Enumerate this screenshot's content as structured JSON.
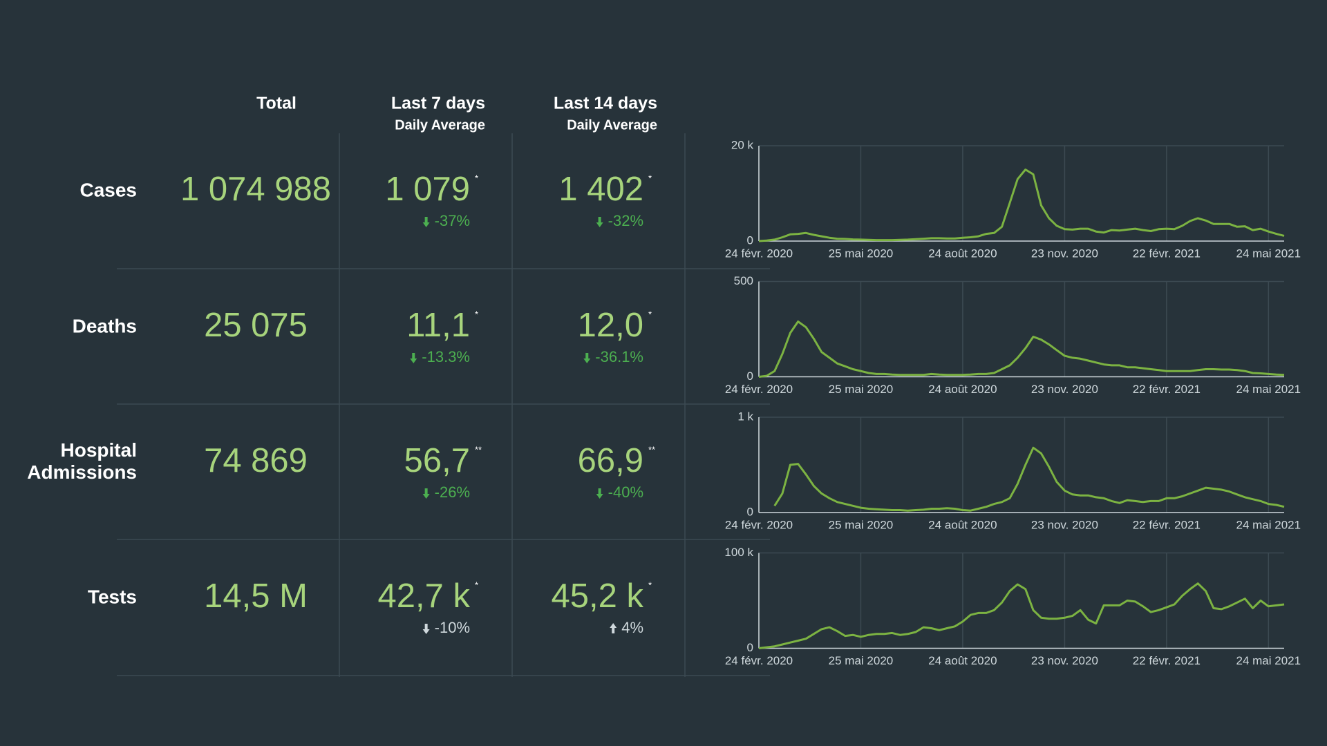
{
  "table": {
    "columns": [
      {
        "title": "Total"
      },
      {
        "title": "Last 7 days",
        "subtitle": "Daily Average"
      },
      {
        "title": "Last 14 days",
        "subtitle": "Daily Average"
      }
    ],
    "rows": [
      {
        "label": "Cases",
        "total": "1 074 988",
        "last7": "1 079",
        "last7_note": "*",
        "last7_change": "-37%",
        "last14": "1 402",
        "last14_note": "*",
        "last14_change": "-32%",
        "change_color": "#4caf50"
      },
      {
        "label": "Deaths",
        "total": "25 075",
        "last7": "11,1",
        "last7_note": "*",
        "last7_change": "-13.3%",
        "last14": "12,0",
        "last14_note": "*",
        "last14_change": "-36.1%",
        "change_color": "#4caf50"
      },
      {
        "label": "Hospital Admissions",
        "total": "74 869",
        "last7": "56,7",
        "last7_note": "**",
        "last7_change": "-26%",
        "last14": "66,9",
        "last14_note": "**",
        "last14_change": "-40%",
        "change_color": "#4caf50"
      },
      {
        "label": "Tests",
        "total": "14,5 M",
        "last7": "42,7 k",
        "last7_note": "*",
        "last7_change": "-10%",
        "last14": "45,2 k",
        "last14_note": "*",
        "last14_change": "4%",
        "change_color": "#cfd8dc"
      }
    ]
  },
  "chart_data": [
    {
      "type": "line",
      "color": "#7cb342",
      "grid": true,
      "xlim": [
        "2020-02-24",
        "2021-06-07"
      ],
      "xticks": [
        {
          "value": "2020-02-24",
          "label": "24 févr. 2020"
        },
        {
          "value": "2020-05-25",
          "label": "25 mai 2020"
        },
        {
          "value": "2020-08-24",
          "label": "24 août 2020"
        },
        {
          "value": "2020-11-23",
          "label": "23 nov. 2020"
        },
        {
          "value": "2021-02-22",
          "label": "22 févr. 2021"
        },
        {
          "value": "2021-05-24",
          "label": "24 mai 2021"
        }
      ],
      "ylim": [
        0,
        20000
      ],
      "yticks": [
        0,
        {
          "value": 20000,
          "label": "20 k"
        }
      ],
      "x": [
        "2020-02-24",
        "2020-03-02",
        "2020-03-09",
        "2020-03-16",
        "2020-03-23",
        "2020-03-30",
        "2020-04-06",
        "2020-04-13",
        "2020-04-20",
        "2020-04-27",
        "2020-05-04",
        "2020-05-11",
        "2020-05-18",
        "2020-05-25",
        "2020-06-01",
        "2020-06-08",
        "2020-06-15",
        "2020-06-22",
        "2020-06-29",
        "2020-07-06",
        "2020-07-13",
        "2020-07-20",
        "2020-07-27",
        "2020-08-03",
        "2020-08-10",
        "2020-08-17",
        "2020-08-24",
        "2020-08-31",
        "2020-09-07",
        "2020-09-14",
        "2020-09-21",
        "2020-09-28",
        "2020-10-05",
        "2020-10-12",
        "2020-10-19",
        "2020-10-26",
        "2020-11-02",
        "2020-11-09",
        "2020-11-16",
        "2020-11-23",
        "2020-11-30",
        "2020-12-07",
        "2020-12-14",
        "2020-12-21",
        "2020-12-28",
        "2021-01-04",
        "2021-01-11",
        "2021-01-18",
        "2021-01-25",
        "2021-02-01",
        "2021-02-08",
        "2021-02-15",
        "2021-02-22",
        "2021-03-01",
        "2021-03-08",
        "2021-03-15",
        "2021-03-22",
        "2021-03-29",
        "2021-04-05",
        "2021-04-12",
        "2021-04-19",
        "2021-04-26",
        "2021-05-03",
        "2021-05-10",
        "2021-05-17",
        "2021-05-24",
        "2021-05-31",
        "2021-06-07"
      ],
      "values": [
        0,
        100,
        300,
        800,
        1400,
        1500,
        1700,
        1300,
        1000,
        700,
        500,
        450,
        350,
        300,
        250,
        200,
        200,
        200,
        250,
        300,
        400,
        500,
        600,
        600,
        550,
        550,
        700,
        800,
        1000,
        1500,
        1700,
        3000,
        8000,
        13000,
        15000,
        14000,
        7500,
        4800,
        3200,
        2500,
        2400,
        2600,
        2600,
        2000,
        1800,
        2300,
        2200,
        2400,
        2600,
        2300,
        2100,
        2500,
        2600,
        2500,
        3200,
        4200,
        4800,
        4300,
        3600,
        3600,
        3600,
        3000,
        3100,
        2300,
        2600,
        2000,
        1500,
        1100
      ]
    },
    {
      "type": "line",
      "color": "#7cb342",
      "grid": true,
      "xlim": [
        "2020-02-24",
        "2021-06-07"
      ],
      "xticks": [
        {
          "value": "2020-02-24",
          "label": "24 févr. 2020"
        },
        {
          "value": "2020-05-25",
          "label": "25 mai 2020"
        },
        {
          "value": "2020-08-24",
          "label": "24 août 2020"
        },
        {
          "value": "2020-11-23",
          "label": "23 nov. 2020"
        },
        {
          "value": "2021-02-22",
          "label": "22 févr. 2021"
        },
        {
          "value": "2021-05-24",
          "label": "24 mai 2021"
        }
      ],
      "ylim": [
        0,
        500
      ],
      "yticks": [
        0,
        500
      ],
      "x": [
        "2020-02-24",
        "2020-03-02",
        "2020-03-09",
        "2020-03-16",
        "2020-03-23",
        "2020-03-30",
        "2020-04-06",
        "2020-04-13",
        "2020-04-20",
        "2020-04-27",
        "2020-05-04",
        "2020-05-11",
        "2020-05-18",
        "2020-05-25",
        "2020-06-01",
        "2020-06-08",
        "2020-06-15",
        "2020-06-22",
        "2020-06-29",
        "2020-07-06",
        "2020-07-13",
        "2020-07-20",
        "2020-07-27",
        "2020-08-03",
        "2020-08-10",
        "2020-08-17",
        "2020-08-24",
        "2020-08-31",
        "2020-09-07",
        "2020-09-14",
        "2020-09-21",
        "2020-09-28",
        "2020-10-05",
        "2020-10-12",
        "2020-10-19",
        "2020-10-26",
        "2020-11-02",
        "2020-11-09",
        "2020-11-16",
        "2020-11-23",
        "2020-11-30",
        "2020-12-07",
        "2020-12-14",
        "2020-12-21",
        "2020-12-28",
        "2021-01-04",
        "2021-01-11",
        "2021-01-18",
        "2021-01-25",
        "2021-02-01",
        "2021-02-08",
        "2021-02-15",
        "2021-02-22",
        "2021-03-01",
        "2021-03-08",
        "2021-03-15",
        "2021-03-22",
        "2021-03-29",
        "2021-04-05",
        "2021-04-12",
        "2021-04-19",
        "2021-04-26",
        "2021-05-03",
        "2021-05-10",
        "2021-05-17",
        "2021-05-24",
        "2021-05-31",
        "2021-06-07"
      ],
      "values": [
        0,
        5,
        30,
        120,
        230,
        290,
        260,
        200,
        130,
        100,
        70,
        55,
        40,
        30,
        20,
        15,
        15,
        12,
        10,
        10,
        10,
        10,
        15,
        12,
        10,
        10,
        10,
        12,
        15,
        15,
        20,
        40,
        60,
        100,
        150,
        210,
        195,
        170,
        140,
        110,
        100,
        95,
        85,
        75,
        65,
        60,
        60,
        50,
        50,
        45,
        40,
        35,
        30,
        30,
        30,
        30,
        35,
        40,
        40,
        38,
        38,
        35,
        30,
        20,
        18,
        15,
        12,
        10
      ]
    },
    {
      "type": "line",
      "color": "#7cb342",
      "grid": true,
      "xlim": [
        "2020-02-24",
        "2021-06-07"
      ],
      "xticks": [
        {
          "value": "2020-02-24",
          "label": "24 févr. 2020"
        },
        {
          "value": "2020-05-25",
          "label": "25 mai 2020"
        },
        {
          "value": "2020-08-24",
          "label": "24 août 2020"
        },
        {
          "value": "2020-11-23",
          "label": "23 nov. 2020"
        },
        {
          "value": "2021-02-22",
          "label": "22 févr. 2021"
        },
        {
          "value": "2021-05-24",
          "label": "24 mai 2021"
        }
      ],
      "ylim": [
        0,
        1000
      ],
      "yticks": [
        0,
        {
          "value": 1000,
          "label": "1 k"
        }
      ],
      "x": [
        "2020-02-24",
        "2020-03-02",
        "2020-03-09",
        "2020-03-16",
        "2020-03-23",
        "2020-03-30",
        "2020-04-06",
        "2020-04-13",
        "2020-04-20",
        "2020-04-27",
        "2020-05-04",
        "2020-05-11",
        "2020-05-18",
        "2020-05-25",
        "2020-06-01",
        "2020-06-08",
        "2020-06-15",
        "2020-06-22",
        "2020-06-29",
        "2020-07-06",
        "2020-07-13",
        "2020-07-20",
        "2020-07-27",
        "2020-08-03",
        "2020-08-10",
        "2020-08-17",
        "2020-08-24",
        "2020-08-31",
        "2020-09-07",
        "2020-09-14",
        "2020-09-21",
        "2020-09-28",
        "2020-10-05",
        "2020-10-12",
        "2020-10-19",
        "2020-10-26",
        "2020-11-02",
        "2020-11-09",
        "2020-11-16",
        "2020-11-23",
        "2020-11-30",
        "2020-12-07",
        "2020-12-14",
        "2020-12-21",
        "2020-12-28",
        "2021-01-04",
        "2021-01-11",
        "2021-01-18",
        "2021-01-25",
        "2021-02-01",
        "2021-02-08",
        "2021-02-15",
        "2021-02-22",
        "2021-03-01",
        "2021-03-08",
        "2021-03-15",
        "2021-03-22",
        "2021-03-29",
        "2021-04-05",
        "2021-04-12",
        "2021-04-19",
        "2021-04-26",
        "2021-05-03",
        "2021-05-10",
        "2021-05-17",
        "2021-05-24",
        "2021-05-31",
        "2021-06-07"
      ],
      "values": [
        null,
        null,
        70,
        200,
        500,
        510,
        400,
        280,
        200,
        150,
        110,
        90,
        70,
        50,
        40,
        35,
        30,
        25,
        25,
        20,
        25,
        30,
        40,
        40,
        45,
        40,
        25,
        20,
        40,
        60,
        90,
        110,
        150,
        300,
        500,
        680,
        620,
        480,
        320,
        230,
        190,
        180,
        180,
        160,
        150,
        120,
        100,
        130,
        120,
        110,
        120,
        120,
        150,
        150,
        170,
        200,
        230,
        260,
        250,
        240,
        220,
        190,
        160,
        140,
        120,
        90,
        80,
        60
      ]
    },
    {
      "type": "line",
      "color": "#7cb342",
      "grid": true,
      "xlim": [
        "2020-02-24",
        "2021-06-07"
      ],
      "xticks": [
        {
          "value": "2020-02-24",
          "label": "24 févr. 2020"
        },
        {
          "value": "2020-05-25",
          "label": "25 mai 2020"
        },
        {
          "value": "2020-08-24",
          "label": "24 août 2020"
        },
        {
          "value": "2020-11-23",
          "label": "23 nov. 2020"
        },
        {
          "value": "2021-02-22",
          "label": "22 févr. 2021"
        },
        {
          "value": "2021-05-24",
          "label": "24 mai 2021"
        }
      ],
      "ylim": [
        0,
        100000
      ],
      "yticks": [
        0,
        {
          "value": 100000,
          "label": "100 k"
        }
      ],
      "x": [
        "2020-02-24",
        "2020-03-02",
        "2020-03-09",
        "2020-03-16",
        "2020-03-23",
        "2020-03-30",
        "2020-04-06",
        "2020-04-13",
        "2020-04-20",
        "2020-04-27",
        "2020-05-04",
        "2020-05-11",
        "2020-05-18",
        "2020-05-25",
        "2020-06-01",
        "2020-06-08",
        "2020-06-15",
        "2020-06-22",
        "2020-06-29",
        "2020-07-06",
        "2020-07-13",
        "2020-07-20",
        "2020-07-27",
        "2020-08-03",
        "2020-08-10",
        "2020-08-17",
        "2020-08-24",
        "2020-08-31",
        "2020-09-07",
        "2020-09-14",
        "2020-09-21",
        "2020-09-28",
        "2020-10-05",
        "2020-10-12",
        "2020-10-19",
        "2020-10-26",
        "2020-11-02",
        "2020-11-09",
        "2020-11-16",
        "2020-11-23",
        "2020-11-30",
        "2020-12-07",
        "2020-12-14",
        "2020-12-21",
        "2020-12-28",
        "2021-01-04",
        "2021-01-11",
        "2021-01-18",
        "2021-01-25",
        "2021-02-01",
        "2021-02-08",
        "2021-02-15",
        "2021-02-22",
        "2021-03-01",
        "2021-03-08",
        "2021-03-15",
        "2021-03-22",
        "2021-03-29",
        "2021-04-05",
        "2021-04-12",
        "2021-04-19",
        "2021-04-26",
        "2021-05-03",
        "2021-05-10",
        "2021-05-17",
        "2021-05-24",
        "2021-05-31",
        "2021-06-07"
      ],
      "values": [
        0,
        1000,
        2000,
        4000,
        6000,
        8000,
        10000,
        15000,
        20000,
        22000,
        18000,
        13000,
        14000,
        12000,
        14000,
        15000,
        15000,
        16000,
        14000,
        15000,
        17000,
        22000,
        21000,
        19000,
        21000,
        23000,
        28000,
        35000,
        37000,
        37000,
        40000,
        48000,
        60000,
        67000,
        62000,
        40000,
        32000,
        31000,
        31000,
        32000,
        34000,
        40000,
        30000,
        26000,
        45000,
        45000,
        45000,
        50000,
        49000,
        44000,
        38000,
        40000,
        43000,
        46000,
        55000,
        62000,
        68000,
        60000,
        42000,
        41000,
        44000,
        48000,
        52000,
        42000,
        50000,
        44000,
        45000,
        46000
      ]
    }
  ]
}
